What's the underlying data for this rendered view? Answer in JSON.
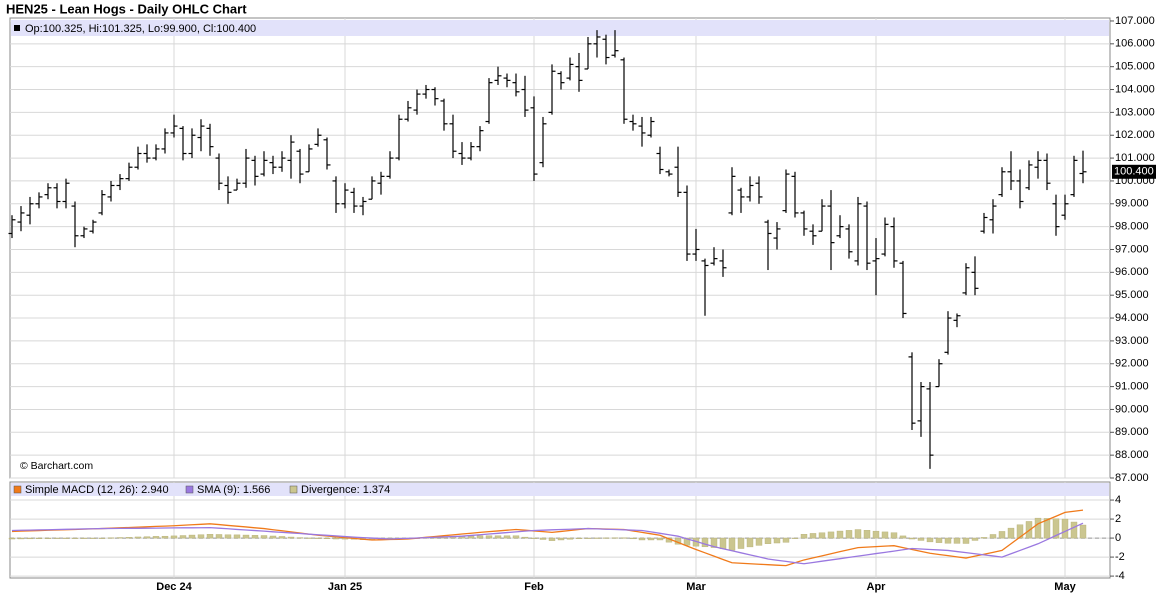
{
  "chart_data": [
    {
      "type": "ohlc",
      "title": "HEN25 - Lean Hogs - Daily OHLC Chart",
      "info_text": "Op:100.325, Hi:101.325, Lo:99.900, Cl:100.400",
      "last_price_label": "100.400",
      "copyright": "© Barchart.com",
      "color": "#000000",
      "grid": true,
      "categories": [
        null,
        null,
        null,
        null,
        null,
        null,
        null,
        null,
        null,
        null,
        null,
        null,
        null,
        null,
        null,
        null,
        null,
        null,
        "Dec 24",
        null,
        null,
        null,
        null,
        null,
        null,
        null,
        null,
        null,
        null,
        null,
        null,
        null,
        null,
        null,
        null,
        null,
        null,
        "Jan 25",
        null,
        null,
        null,
        null,
        null,
        null,
        null,
        null,
        null,
        null,
        null,
        null,
        null,
        null,
        null,
        null,
        null,
        null,
        null,
        null,
        "Feb",
        null,
        null,
        null,
        null,
        null,
        null,
        null,
        null,
        null,
        null,
        null,
        null,
        null,
        null,
        null,
        null,
        null,
        "Mar",
        null,
        null,
        null,
        null,
        null,
        null,
        null,
        null,
        null,
        null,
        null,
        null,
        null,
        null,
        null,
        null,
        null,
        null,
        null,
        "Apr",
        null,
        null,
        null,
        null,
        null,
        null,
        null,
        null,
        null,
        null,
        null,
        null,
        null,
        null,
        null,
        null,
        null,
        null,
        null,
        null,
        "May",
        null,
        null
      ],
      "open": [
        97.7,
        98.2,
        98.5,
        99.0,
        99.4,
        99.7,
        99.1,
        98.9,
        97.6,
        97.8,
        98.6,
        99.3,
        99.8,
        100.1,
        100.6,
        101.2,
        101.0,
        101.4,
        102.1,
        102.3,
        101.2,
        101.9,
        102.3,
        101.0,
        99.8,
        99.6,
        99.9,
        100.9,
        100.3,
        100.8,
        100.6,
        100.9,
        101.3,
        100.4,
        101.6,
        101.8,
        100.0,
        99.0,
        99.5,
        98.9,
        99.2,
        99.9,
        100.2,
        101.0,
        102.7,
        103.1,
        103.8,
        104.0,
        103.5,
        102.5,
        101.2,
        101.0,
        101.5,
        102.6,
        104.4,
        104.5,
        104.3,
        104.0,
        103.2,
        100.8,
        103.0,
        104.7,
        104.5,
        105.0,
        104.9,
        106.0,
        106.2,
        105.5,
        105.3,
        102.6,
        102.4,
        102.0,
        101.2,
        100.4,
        100.6,
        99.5,
        96.8,
        96.5,
        96.4,
        96.5,
        98.6,
        99.6,
        99.3,
        99.9,
        98.2,
        97.5,
        98.7,
        100.2,
        98.6,
        97.8,
        97.8,
        98.9,
        97.6,
        97.9,
        96.5,
        98.9,
        96.5,
        96.8,
        98.0,
        96.4,
        92.3,
        89.5,
        90.9,
        91.0,
        92.5,
        93.9,
        95.1,
        96.0,
        97.8,
        98.3,
        99.4,
        100.4,
        100.0,
        99.7,
        100.6,
        100.9,
        99.0,
        98.5,
        99.4,
        100.325
      ],
      "high": [
        98.5,
        98.9,
        99.3,
        99.5,
        99.9,
        99.9,
        100.1,
        99.1,
        98.0,
        98.3,
        99.6,
        100.0,
        100.3,
        100.8,
        101.5,
        101.6,
        101.6,
        102.3,
        102.9,
        102.4,
        102.3,
        102.7,
        102.5,
        101.2,
        100.2,
        100.1,
        101.4,
        101.1,
        101.3,
        101.1,
        101.3,
        102.0,
        101.4,
        101.6,
        102.3,
        101.9,
        100.2,
        99.9,
        99.7,
        99.3,
        100.2,
        100.4,
        101.3,
        102.9,
        103.5,
        104.0,
        104.2,
        104.1,
        103.6,
        102.9,
        101.7,
        101.7,
        102.4,
        104.5,
        105.0,
        104.7,
        104.7,
        104.6,
        103.7,
        102.8,
        105.1,
        104.8,
        105.4,
        105.6,
        106.3,
        106.6,
        106.4,
        106.6,
        105.4,
        102.9,
        102.8,
        102.8,
        101.5,
        100.5,
        101.5,
        99.8,
        97.9,
        96.6,
        97.1,
        97.0,
        100.6,
        99.7,
        100.2,
        100.2,
        98.3,
        98.2,
        100.5,
        100.4,
        98.7,
        98.1,
        99.2,
        99.6,
        98.5,
        98.1,
        99.3,
        99.1,
        97.5,
        98.4,
        98.4,
        96.5,
        92.5,
        91.2,
        91.2,
        92.2,
        94.3,
        94.2,
        96.4,
        96.7,
        98.6,
        99.2,
        100.6,
        101.3,
        100.5,
        100.9,
        101.3,
        101.2,
        99.4,
        99.4,
        101.1,
        101.325
      ],
      "low": [
        97.5,
        97.8,
        98.1,
        98.8,
        99.2,
        98.8,
        98.8,
        97.1,
        97.5,
        97.7,
        98.5,
        99.1,
        99.6,
        100.0,
        100.5,
        100.8,
        100.9,
        101.2,
        101.9,
        100.9,
        101.0,
        101.3,
        101.1,
        99.6,
        99.0,
        99.6,
        99.7,
        99.8,
        100.2,
        100.3,
        100.4,
        100.1,
        99.9,
        100.4,
        101.5,
        100.5,
        98.6,
        98.8,
        98.6,
        98.5,
        99.2,
        99.4,
        100.1,
        100.9,
        102.6,
        102.9,
        103.6,
        103.3,
        102.2,
        101.0,
        100.7,
        100.9,
        101.3,
        102.5,
        104.2,
        104.1,
        103.7,
        102.8,
        100.0,
        100.6,
        102.9,
        104.0,
        104.4,
        103.9,
        104.9,
        105.4,
        105.1,
        105.4,
        102.5,
        102.2,
        101.5,
        101.9,
        100.3,
        100.2,
        99.3,
        96.5,
        96.5,
        94.1,
        96.3,
        95.8,
        98.5,
        98.6,
        99.1,
        99.0,
        96.1,
        97.0,
        98.6,
        98.4,
        97.6,
        97.2,
        97.8,
        96.1,
        97.5,
        96.6,
        96.3,
        96.1,
        95.0,
        96.7,
        96.2,
        94.0,
        89.1,
        88.8,
        87.4,
        91.0,
        92.4,
        93.6,
        95.0,
        95.0,
        97.7,
        97.7,
        99.3,
        99.6,
        98.8,
        99.6,
        100.1,
        99.6,
        97.6,
        98.3,
        99.3,
        99.9
      ],
      "close": [
        98.3,
        98.6,
        99.0,
        99.3,
        99.7,
        99.1,
        99.9,
        97.6,
        97.9,
        98.2,
        99.4,
        99.8,
        100.1,
        100.6,
        101.2,
        101.0,
        101.4,
        102.1,
        102.4,
        101.2,
        102.0,
        102.4,
        101.5,
        99.9,
        99.5,
        99.9,
        101.0,
        100.2,
        100.9,
        100.6,
        101.0,
        101.7,
        100.3,
        101.4,
        102.0,
        100.7,
        99.0,
        99.6,
        98.9,
        99.1,
        100.0,
        100.2,
        101.0,
        102.7,
        103.2,
        103.8,
        104.0,
        103.6,
        102.5,
        101.3,
        101.0,
        101.5,
        102.2,
        104.3,
        104.6,
        104.4,
        103.9,
        103.1,
        100.3,
        102.5,
        104.8,
        104.3,
        105.1,
        104.4,
        106.0,
        106.3,
        105.4,
        105.7,
        102.7,
        102.5,
        102.1,
        102.6,
        100.5,
        100.3,
        99.5,
        96.8,
        97.0,
        96.3,
        96.6,
        96.2,
        100.2,
        99.3,
        99.8,
        99.3,
        97.7,
        97.9,
        100.3,
        98.6,
        97.9,
        97.6,
        98.9,
        97.3,
        98.0,
        96.9,
        99.0,
        96.4,
        96.6,
        98.1,
        96.5,
        94.2,
        89.4,
        91.0,
        88.0,
        92.0,
        94.0,
        94.1,
        96.2,
        95.3,
        98.4,
        98.9,
        100.4,
        100.0,
        99.1,
        100.7,
        100.9,
        99.9,
        98.0,
        99.0,
        100.9,
        100.4
      ],
      "ylim": [
        87,
        107.13
      ],
      "yticks": [
        {
          "value": 87,
          "label": "87.000"
        },
        {
          "value": 88,
          "label": "88.000"
        },
        {
          "value": 89,
          "label": "89.000"
        },
        {
          "value": 90,
          "label": "90.000"
        },
        {
          "value": 91,
          "label": "91.000"
        },
        {
          "value": 92,
          "label": "92.000"
        },
        {
          "value": 93,
          "label": "93.000"
        },
        {
          "value": 94,
          "label": "94.000"
        },
        {
          "value": 95,
          "label": "95.000"
        },
        {
          "value": 96,
          "label": "96.000"
        },
        {
          "value": 97,
          "label": "97.000"
        },
        {
          "value": 98,
          "label": "98.000"
        },
        {
          "value": 99,
          "label": "99.000"
        },
        {
          "value": 100,
          "label": "100.000"
        },
        {
          "value": 101,
          "label": "101.000"
        },
        {
          "value": 102,
          "label": "102.000"
        },
        {
          "value": 103,
          "label": "103.000"
        },
        {
          "value": 104,
          "label": "104.000"
        },
        {
          "value": 105,
          "label": "105.000"
        },
        {
          "value": 106,
          "label": "106.000"
        },
        {
          "value": 107,
          "label": "107.000"
        }
      ]
    },
    {
      "type": "macd",
      "grid": true,
      "series": [
        {
          "name": "Simple MACD (12, 26): 2.940",
          "type": "line",
          "color": "#f07a1a",
          "values": [
            0.7,
            0.73,
            0.76,
            0.79,
            0.82,
            0.85,
            0.88,
            0.91,
            0.94,
            0.97,
            1.0,
            1.04,
            1.08,
            1.11,
            1.15,
            1.19,
            1.23,
            1.26,
            1.3,
            1.35,
            1.4,
            1.45,
            1.5,
            1.42,
            1.33,
            1.25,
            1.17,
            1.08,
            1.0,
            0.88,
            0.77,
            0.65,
            0.53,
            0.42,
            0.3,
            0.22,
            0.13,
            0.05,
            -0.03,
            -0.12,
            -0.2,
            -0.18,
            -0.15,
            -0.13,
            -0.1,
            -0.01,
            0.08,
            0.16,
            0.25,
            0.34,
            0.43,
            0.51,
            0.6,
            0.68,
            0.75,
            0.83,
            0.9,
            0.83,
            0.75,
            0.68,
            0.6,
            0.7,
            0.8,
            0.9,
            1.0,
            0.98,
            0.95,
            0.93,
            0.9,
            0.75,
            0.6,
            0.45,
            0.3,
            -0.08,
            -0.45,
            -0.83,
            -1.2,
            -1.55,
            -1.9,
            -2.25,
            -2.6,
            -2.65,
            -2.7,
            -2.75,
            -2.8,
            -2.85,
            -2.9,
            -2.6,
            -2.3,
            -2.08,
            -1.87,
            -1.65,
            -1.43,
            -1.22,
            -1.0,
            -0.95,
            -0.9,
            -0.85,
            -0.8,
            -1.0,
            -1.2,
            -1.4,
            -1.6,
            -1.73,
            -1.85,
            -1.98,
            -2.1,
            -1.9,
            -1.7,
            -1.5,
            -1.3,
            -0.6,
            0.1,
            0.8,
            1.5,
            1.9,
            2.3,
            2.7,
            2.82,
            2.94
          ]
        },
        {
          "name": "SMA (9): 1.566",
          "type": "line",
          "color": "#9a78e0",
          "values": [
            0.8,
            0.82,
            0.84,
            0.86,
            0.88,
            0.9,
            0.92,
            0.94,
            0.96,
            0.98,
            1.0,
            1.01,
            1.02,
            1.03,
            1.03,
            1.04,
            1.05,
            1.06,
            1.07,
            1.08,
            1.08,
            1.09,
            1.1,
            1.04,
            0.98,
            0.91,
            0.85,
            0.79,
            0.73,
            0.66,
            0.6,
            0.54,
            0.48,
            0.41,
            0.35,
            0.29,
            0.23,
            0.16,
            0.1,
            0.05,
            0.0,
            -0.05,
            -0.1,
            -0.06,
            -0.03,
            0.01,
            0.05,
            0.09,
            0.13,
            0.16,
            0.2,
            0.28,
            0.35,
            0.43,
            0.5,
            0.58,
            0.65,
            0.73,
            0.8,
            0.83,
            0.87,
            0.9,
            0.93,
            0.97,
            1.0,
            0.97,
            0.93,
            0.9,
            0.87,
            0.83,
            0.8,
            0.65,
            0.5,
            0.35,
            0.2,
            -0.08,
            -0.35,
            -0.63,
            -0.9,
            -1.12,
            -1.33,
            -1.55,
            -1.77,
            -1.98,
            -2.2,
            -2.33,
            -2.45,
            -2.58,
            -2.7,
            -2.57,
            -2.43,
            -2.3,
            -2.17,
            -2.03,
            -1.9,
            -1.77,
            -1.63,
            -1.5,
            -1.37,
            -1.23,
            -1.1,
            -1.15,
            -1.2,
            -1.25,
            -1.3,
            -1.42,
            -1.53,
            -1.65,
            -1.77,
            -1.88,
            -2.0,
            -1.65,
            -1.3,
            -0.95,
            -0.6,
            -0.17,
            0.27,
            0.7,
            1.13,
            1.566
          ]
        },
        {
          "name": "Divergence: 1.374",
          "type": "bar",
          "color": "#cbc690",
          "values": [
            -0.1,
            -0.09,
            -0.08,
            -0.07,
            -0.06,
            -0.05,
            -0.04,
            -0.03,
            -0.02,
            -0.01,
            0.0,
            0.03,
            0.06,
            0.08,
            0.12,
            0.15,
            0.18,
            0.2,
            0.23,
            0.27,
            0.32,
            0.36,
            0.4,
            0.38,
            0.35,
            0.34,
            0.32,
            0.29,
            0.27,
            0.22,
            0.17,
            0.11,
            0.05,
            0.01,
            -0.05,
            -0.07,
            -0.1,
            -0.11,
            -0.13,
            -0.17,
            -0.2,
            -0.13,
            -0.05,
            -0.07,
            -0.07,
            -0.02,
            0.03,
            0.07,
            0.12,
            0.18,
            0.23,
            0.23,
            0.25,
            0.25,
            0.25,
            0.25,
            0.25,
            0.1,
            -0.05,
            -0.15,
            -0.27,
            -0.2,
            -0.13,
            -0.07,
            0.0,
            0.01,
            0.02,
            0.03,
            0.03,
            -0.08,
            -0.2,
            -0.2,
            -0.2,
            -0.43,
            -0.65,
            -0.75,
            -0.85,
            -0.92,
            -1.0,
            -1.13,
            -1.27,
            -1.1,
            -0.93,
            -0.77,
            -0.6,
            -0.52,
            -0.45,
            -0.02,
            0.4,
            0.49,
            0.56,
            0.65,
            0.74,
            0.81,
            0.9,
            0.82,
            0.73,
            0.65,
            0.57,
            0.23,
            -0.1,
            -0.25,
            -0.4,
            -0.48,
            -0.55,
            -0.56,
            -0.57,
            -0.25,
            0.07,
            0.38,
            0.7,
            1.05,
            1.4,
            1.75,
            2.1,
            2.07,
            2.03,
            2.0,
            1.69,
            1.374
          ]
        }
      ],
      "ylim": [
        -4.2,
        5.9
      ],
      "yticks": [
        4,
        2,
        0,
        -2,
        -4
      ]
    }
  ]
}
